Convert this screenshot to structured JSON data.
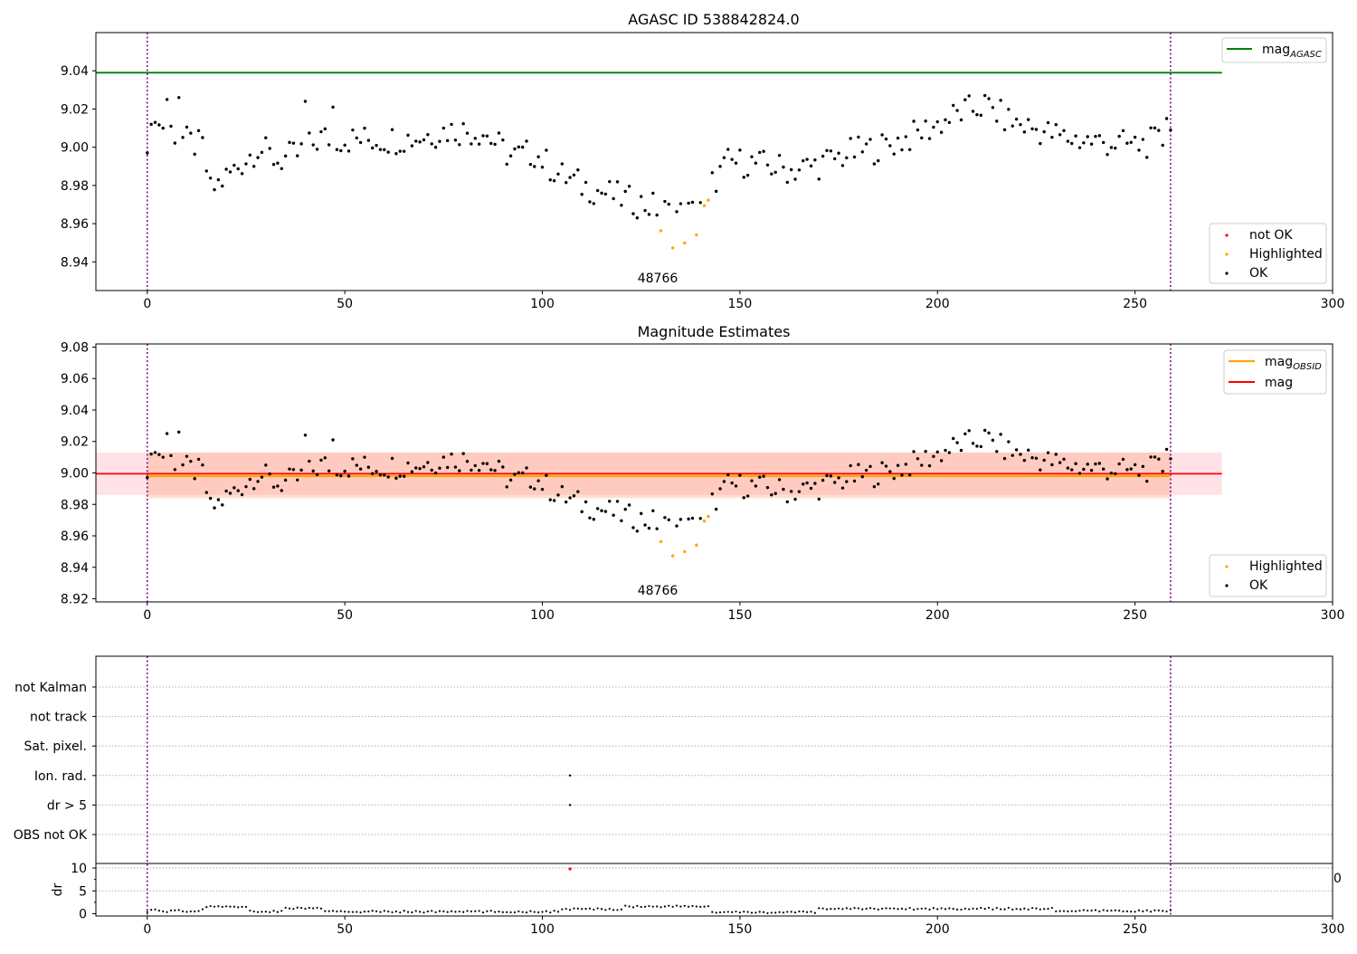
{
  "chart_data": [
    {
      "type": "scatter",
      "title": "AGASC ID 538842824.0",
      "xlim": [
        -13,
        300
      ],
      "ylim": [
        8.925,
        9.06
      ],
      "x_ticks": [
        "0",
        "50",
        "100",
        "150",
        "200",
        "250",
        "300"
      ],
      "y_ticks": [
        "8.94",
        "8.96",
        "8.98",
        "9.00",
        "9.02",
        "9.04"
      ],
      "annotation": "48766",
      "vlines": [
        0,
        259
      ],
      "lines": [
        {
          "name_main": "mag",
          "name_sub": "AGASC",
          "y": 9.039,
          "color": "#008000",
          "x_range": [
            -13,
            272
          ]
        }
      ],
      "legend_lines_placement": "upper right",
      "legend_points_placement": "lower right",
      "legend_points": [
        {
          "name": "not OK",
          "color": "#ff0000"
        },
        {
          "name": "Highlighted",
          "color": "#ffa500"
        },
        {
          "name": "OK",
          "color": "#000000"
        }
      ]
    },
    {
      "type": "scatter",
      "title": "Magnitude Estimates",
      "xlim": [
        -13,
        300
      ],
      "ylim": [
        8.918,
        9.082
      ],
      "x_ticks": [
        "0",
        "50",
        "100",
        "150",
        "200",
        "250",
        "300"
      ],
      "y_ticks": [
        "8.92",
        "8.94",
        "8.96",
        "8.98",
        "9.00",
        "9.02",
        "9.04",
        "9.06",
        "9.08"
      ],
      "annotation": "48766",
      "vlines": [
        0,
        259
      ],
      "bands": [
        {
          "y0": 8.986,
          "y1": 9.013,
          "color": "#ffb6c1",
          "opacity": 0.4,
          "x_range": [
            -13,
            272
          ]
        },
        {
          "y0": 8.984,
          "y1": 9.013,
          "color": "#ffa07a",
          "opacity": 0.35,
          "x_range": [
            0,
            259
          ]
        }
      ],
      "lines": [
        {
          "name_main": "mag",
          "name_sub": "OBSID",
          "y": 8.998,
          "color": "#ffa500",
          "x_range": [
            0,
            259
          ]
        },
        {
          "name_main": "mag",
          "name_sub": "",
          "y": 8.9995,
          "color": "#ff0000",
          "x_range": [
            -13,
            272
          ]
        }
      ],
      "legend_lines_placement": "upper right",
      "legend_points_placement": "lower right",
      "legend_points": [
        {
          "name": "Highlighted",
          "color": "#ffa500"
        },
        {
          "name": "OK",
          "color": "#000000"
        }
      ]
    },
    {
      "type": "scatter",
      "title": "",
      "xlim": [
        -13,
        300
      ],
      "flag_rows": [
        "not Kalman",
        "not track",
        "Sat. pixel.",
        "Ion. rad.",
        "dr > 5",
        "OBS not OK"
      ],
      "flag_points": [
        {
          "row": "Ion. rad.",
          "x": 107
        },
        {
          "row": "dr > 5",
          "x": 107
        }
      ],
      "dr_ylabel": "dr",
      "dr_ylim": [
        -0.5,
        11
      ],
      "dr_ticks": [
        "0",
        "5",
        "10"
      ],
      "dr_right_label": "0",
      "dr_outlier": {
        "x": 107,
        "y": 9.8,
        "color": "#ff0000"
      },
      "x_ticks": [
        "0",
        "50",
        "100",
        "150",
        "200",
        "250",
        "300"
      ],
      "vlines": [
        0,
        259
      ]
    }
  ]
}
